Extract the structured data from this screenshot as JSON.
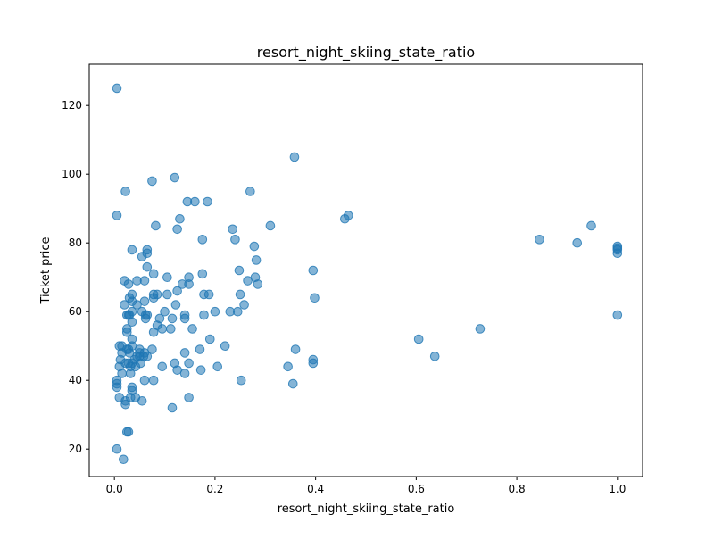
{
  "chart_data": {
    "type": "scatter",
    "title": "resort_night_skiing_state_ratio",
    "xlabel": "resort_night_skiing_state_ratio",
    "ylabel": "Ticket price",
    "xlim": [
      -0.05,
      1.05
    ],
    "ylim": [
      12,
      132
    ],
    "xticks": [
      0.0,
      0.2,
      0.4,
      0.6,
      0.8,
      1.0
    ],
    "xtick_labels": [
      "0.0",
      "0.2",
      "0.4",
      "0.6",
      "0.8",
      "1.0"
    ],
    "yticks": [
      20,
      40,
      60,
      80,
      100,
      120
    ],
    "ytick_labels": [
      "20",
      "40",
      "60",
      "80",
      "100",
      "120"
    ],
    "grid": false,
    "series": [
      {
        "color": "#1f77b4",
        "points": [
          [
            0.005,
            125
          ],
          [
            0.005,
            88
          ],
          [
            0.005,
            40
          ],
          [
            0.005,
            39
          ],
          [
            0.005,
            38
          ],
          [
            0.005,
            20
          ],
          [
            0.01,
            50
          ],
          [
            0.01,
            44
          ],
          [
            0.01,
            35
          ],
          [
            0.012,
            46
          ],
          [
            0.015,
            50
          ],
          [
            0.015,
            48
          ],
          [
            0.015,
            42
          ],
          [
            0.018,
            17
          ],
          [
            0.02,
            69
          ],
          [
            0.02,
            62
          ],
          [
            0.022,
            95
          ],
          [
            0.022,
            45
          ],
          [
            0.022,
            34
          ],
          [
            0.022,
            33
          ],
          [
            0.025,
            59
          ],
          [
            0.025,
            55
          ],
          [
            0.025,
            54
          ],
          [
            0.025,
            49
          ],
          [
            0.025,
            25
          ],
          [
            0.028,
            68
          ],
          [
            0.028,
            59
          ],
          [
            0.028,
            49
          ],
          [
            0.028,
            45
          ],
          [
            0.028,
            25
          ],
          [
            0.03,
            64
          ],
          [
            0.03,
            59
          ],
          [
            0.03,
            48
          ],
          [
            0.032,
            44
          ],
          [
            0.032,
            42
          ],
          [
            0.032,
            35
          ],
          [
            0.035,
            78
          ],
          [
            0.035,
            65
          ],
          [
            0.035,
            63
          ],
          [
            0.035,
            60
          ],
          [
            0.035,
            57
          ],
          [
            0.035,
            52
          ],
          [
            0.035,
            50
          ],
          [
            0.035,
            45
          ],
          [
            0.035,
            38
          ],
          [
            0.035,
            37
          ],
          [
            0.04,
            46
          ],
          [
            0.042,
            44
          ],
          [
            0.042,
            35
          ],
          [
            0.045,
            69
          ],
          [
            0.045,
            62
          ],
          [
            0.045,
            47
          ],
          [
            0.05,
            49
          ],
          [
            0.05,
            48
          ],
          [
            0.05,
            47
          ],
          [
            0.052,
            45
          ],
          [
            0.055,
            76
          ],
          [
            0.055,
            60
          ],
          [
            0.055,
            34
          ],
          [
            0.058,
            47
          ],
          [
            0.06,
            69
          ],
          [
            0.06,
            63
          ],
          [
            0.06,
            48
          ],
          [
            0.06,
            40
          ],
          [
            0.062,
            59
          ],
          [
            0.062,
            58
          ],
          [
            0.065,
            78
          ],
          [
            0.065,
            77
          ],
          [
            0.065,
            73
          ],
          [
            0.065,
            59
          ],
          [
            0.065,
            47
          ],
          [
            0.075,
            98
          ],
          [
            0.075,
            49
          ],
          [
            0.078,
            71
          ],
          [
            0.078,
            65
          ],
          [
            0.078,
            64
          ],
          [
            0.078,
            54
          ],
          [
            0.078,
            40
          ],
          [
            0.082,
            85
          ],
          [
            0.085,
            65
          ],
          [
            0.085,
            56
          ],
          [
            0.09,
            58
          ],
          [
            0.095,
            55
          ],
          [
            0.095,
            44
          ],
          [
            0.1,
            60
          ],
          [
            0.105,
            70
          ],
          [
            0.105,
            65
          ],
          [
            0.112,
            55
          ],
          [
            0.115,
            58
          ],
          [
            0.115,
            32
          ],
          [
            0.12,
            99
          ],
          [
            0.12,
            45
          ],
          [
            0.122,
            62
          ],
          [
            0.125,
            84
          ],
          [
            0.125,
            66
          ],
          [
            0.125,
            43
          ],
          [
            0.13,
            87
          ],
          [
            0.135,
            68
          ],
          [
            0.14,
            59
          ],
          [
            0.14,
            58
          ],
          [
            0.14,
            48
          ],
          [
            0.14,
            42
          ],
          [
            0.145,
            92
          ],
          [
            0.148,
            70
          ],
          [
            0.148,
            68
          ],
          [
            0.148,
            45
          ],
          [
            0.148,
            35
          ],
          [
            0.155,
            55
          ],
          [
            0.16,
            92
          ],
          [
            0.17,
            49
          ],
          [
            0.172,
            43
          ],
          [
            0.175,
            81
          ],
          [
            0.175,
            71
          ],
          [
            0.178,
            65
          ],
          [
            0.178,
            59
          ],
          [
            0.185,
            92
          ],
          [
            0.188,
            65
          ],
          [
            0.19,
            52
          ],
          [
            0.2,
            60
          ],
          [
            0.205,
            44
          ],
          [
            0.22,
            50
          ],
          [
            0.23,
            60
          ],
          [
            0.235,
            84
          ],
          [
            0.24,
            81
          ],
          [
            0.245,
            60
          ],
          [
            0.248,
            72
          ],
          [
            0.25,
            65
          ],
          [
            0.252,
            40
          ],
          [
            0.258,
            62
          ],
          [
            0.265,
            69
          ],
          [
            0.27,
            95
          ],
          [
            0.278,
            79
          ],
          [
            0.28,
            70
          ],
          [
            0.282,
            75
          ],
          [
            0.285,
            68
          ],
          [
            0.31,
            85
          ],
          [
            0.345,
            44
          ],
          [
            0.355,
            39
          ],
          [
            0.358,
            105
          ],
          [
            0.36,
            49
          ],
          [
            0.395,
            72
          ],
          [
            0.395,
            46
          ],
          [
            0.395,
            45
          ],
          [
            0.398,
            64
          ],
          [
            0.458,
            87
          ],
          [
            0.465,
            88
          ],
          [
            0.605,
            52
          ],
          [
            0.637,
            47
          ],
          [
            0.727,
            55
          ],
          [
            0.845,
            81
          ],
          [
            0.92,
            80
          ],
          [
            0.948,
            85
          ],
          [
            1.0,
            79
          ],
          [
            1.0,
            78.5
          ],
          [
            1.0,
            78
          ],
          [
            1.0,
            77
          ],
          [
            1.0,
            59
          ]
        ]
      }
    ]
  }
}
